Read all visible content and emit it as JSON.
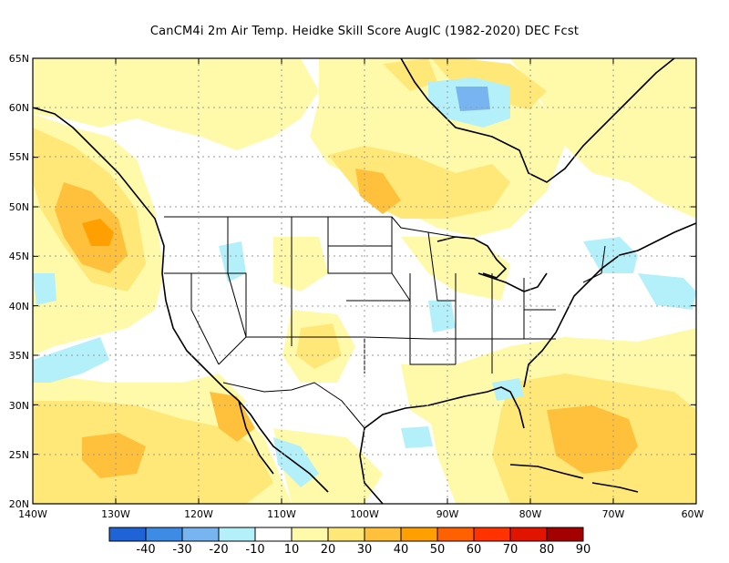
{
  "title": "CanCM4i  2m Air Temp. Heidke Skill Score AugIC (1982-2020) DEC Fcst",
  "map": {
    "lat_labels": [
      "65N",
      "60N",
      "55N",
      "50N",
      "45N",
      "40N",
      "35N",
      "30N",
      "25N",
      "20N"
    ],
    "lon_labels": [
      "140W",
      "130W",
      "120W",
      "110W",
      "100W",
      "90W",
      "80W",
      "70W",
      "60W"
    ],
    "extent": {
      "lon": [
        -140,
        -60
      ],
      "lat": [
        20,
        65
      ]
    },
    "grid": true
  },
  "colorbar": {
    "labels": [
      "-40",
      "-30",
      "-20",
      "-10",
      "10",
      "20",
      "30",
      "40",
      "50",
      "60",
      "70",
      "80",
      "90"
    ],
    "colors": [
      "#1e64d6",
      "#3c8ce6",
      "#78b4f0",
      "#b4f0fa",
      "#ffffff",
      "#fffaaa",
      "#ffe878",
      "#ffc03c",
      "#ffa000",
      "#ff6000",
      "#ff3200",
      "#e11400",
      "#a50000"
    ]
  }
}
